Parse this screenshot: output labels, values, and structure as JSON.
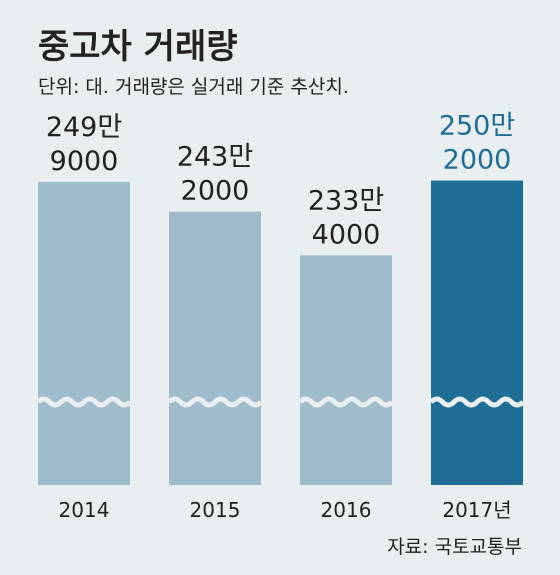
{
  "title": "중고차 거래량",
  "subtitle": "단위: 대. 거래량은 실거래 기준 추산치.",
  "source": "자료: 국토교통부",
  "colors": {
    "background": "#e9eef0",
    "bar": "#9fbccb",
    "highlight": "#1f6e96",
    "label_highlight": "#1f6e96",
    "text": "#222222"
  },
  "chart_data": {
    "type": "bar",
    "categories": [
      "2014",
      "2015",
      "2016",
      "2017년"
    ],
    "values": [
      2499000,
      2432000,
      2334000,
      2502000
    ],
    "value_labels": [
      [
        "249만",
        "9000"
      ],
      [
        "243만",
        "2000"
      ],
      [
        "233만",
        "4000"
      ],
      [
        "250만",
        "2000"
      ]
    ],
    "highlight_index": 3,
    "axis_break": true,
    "title": "중고차 거래량",
    "xlabel": "",
    "ylabel": ""
  }
}
